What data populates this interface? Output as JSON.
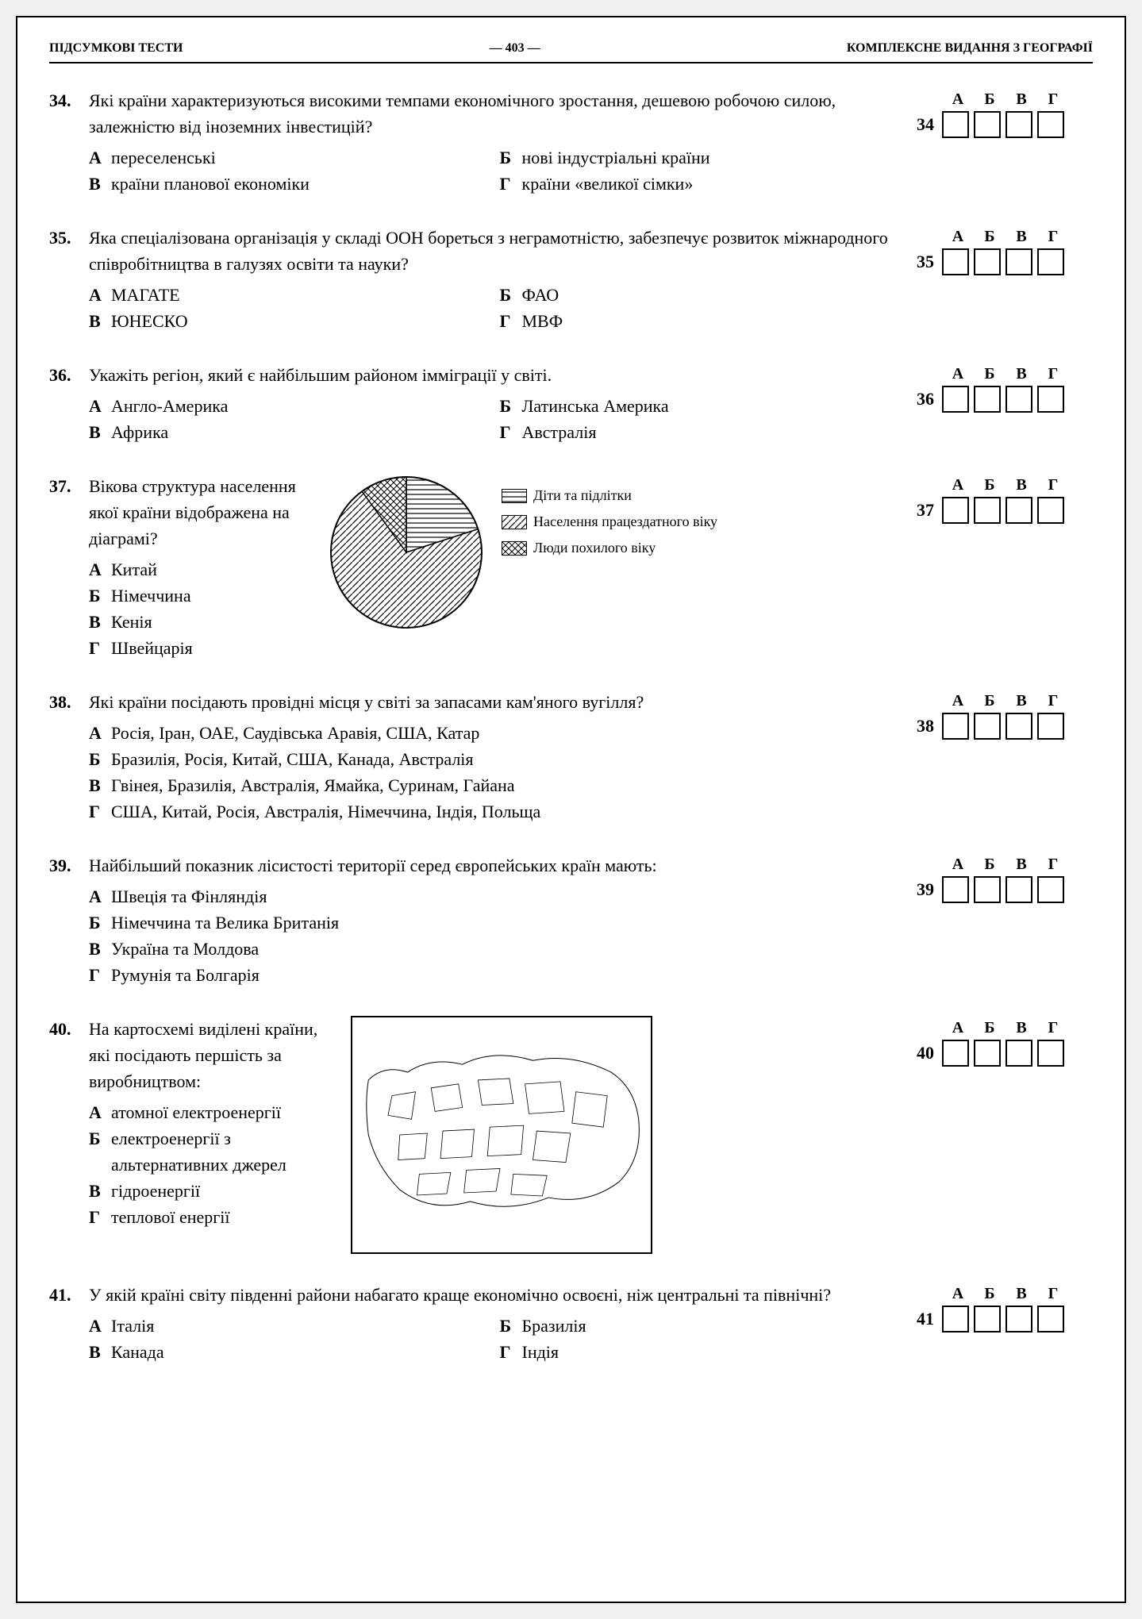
{
  "header": {
    "left": "ПІДСУМКОВІ ТЕСТИ",
    "center": "— 403 —",
    "right": "КОМПЛЕКСНЕ ВИДАННЯ З ГЕОГРАФІЇ"
  },
  "answer_letters": [
    "А",
    "Б",
    "В",
    "Г"
  ],
  "questions": {
    "q34": {
      "num": "34.",
      "text": "Які країни характеризуються високими темпами економічного зростання, дешевою робочою силою, залежністю від іноземних інвестицій?",
      "opts": {
        "A": "переселенські",
        "B": "нові індустріальні країни",
        "V": "країни планової економіки",
        "G": "країни «великої сімки»"
      },
      "answer_num": "34"
    },
    "q35": {
      "num": "35.",
      "text": "Яка спеціалізована організація у складі ООН бореться з неграмотністю, забезпечує розвиток міжнародного співробітництва в галузях освіти та науки?",
      "opts": {
        "A": "МАГАТЕ",
        "B": "ФАО",
        "V": "ЮНЕСКО",
        "G": "МВФ"
      },
      "answer_num": "35"
    },
    "q36": {
      "num": "36.",
      "text": "Укажіть регіон, який є найбільшим районом імміграції у світі.",
      "opts": {
        "A": "Англо-Америка",
        "B": "Латинська Америка",
        "V": "Африка",
        "G": "Австралія"
      },
      "answer_num": "36"
    },
    "q37": {
      "num": "37.",
      "text": "Вікова структура населення якої країни відображена на діаграмі?",
      "opts": {
        "A": "Китай",
        "B": "Німеччина",
        "V": "Кенія",
        "G": "Швейцарія"
      },
      "answer_num": "37",
      "chart": {
        "type": "pie",
        "slices": [
          {
            "label": "Діти та підлітки",
            "value": 20,
            "pattern": "horizontal-lines"
          },
          {
            "label": "Населення працездатного віку",
            "value": 70,
            "pattern": "diagonal-lines"
          },
          {
            "label": "Люди похилого віку",
            "value": 10,
            "pattern": "crosshatch"
          }
        ],
        "stroke": "#000000",
        "background": "#ffffff"
      },
      "legend": [
        {
          "label": "Діти та підлітки",
          "pattern": "horizontal-lines"
        },
        {
          "label": "Населення працездатного віку",
          "pattern": "diagonal-lines"
        },
        {
          "label": "Люди похилого віку",
          "pattern": "crosshatch"
        }
      ]
    },
    "q38": {
      "num": "38.",
      "text": "Які країни посідають провідні місця у світі за запасами кам'яного вугілля?",
      "opts": {
        "A": "Росія, Іран, ОАЕ, Саудівська Аравія, США, Катар",
        "B": "Бразилія, Росія, Китай, США, Канада, Австралія",
        "V": "Гвінея, Бразилія, Австралія, Ямайка, Суринам, Гайана",
        "G": "США, Китай, Росія, Австралія, Німеччина, Індія, Польща"
      },
      "answer_num": "38"
    },
    "q39": {
      "num": "39.",
      "text": "Найбільший показник лісистості території серед європейських країн мають:",
      "opts": {
        "A": "Швеція та Фінляндія",
        "B": "Німеччина та Велика Британія",
        "V": "Україна та Молдова",
        "G": "Румунія та Болгарія"
      },
      "answer_num": "39"
    },
    "q40": {
      "num": "40.",
      "text": "На картосхемі виділені країни, які посідають першість за виробництвом:",
      "opts": {
        "A": "атомної електроенергії",
        "B": "електроенергії з альтернативних джерел",
        "V": "гідроенергії",
        "G": "теплової енергії"
      },
      "answer_num": "40",
      "map": {
        "type": "outline-map",
        "region": "Eurasia",
        "stroke": "#000000",
        "fill": "#ffffff"
      }
    },
    "q41": {
      "num": "41.",
      "text": "У якій країні світу південні райони набагато краще економічно освоєні, ніж центральні та північні?",
      "opts": {
        "A": "Італія",
        "B": "Бразилія",
        "V": "Канада",
        "G": "Індія"
      },
      "answer_num": "41"
    }
  },
  "letters": {
    "A": "А",
    "B": "Б",
    "V": "В",
    "G": "Г"
  }
}
